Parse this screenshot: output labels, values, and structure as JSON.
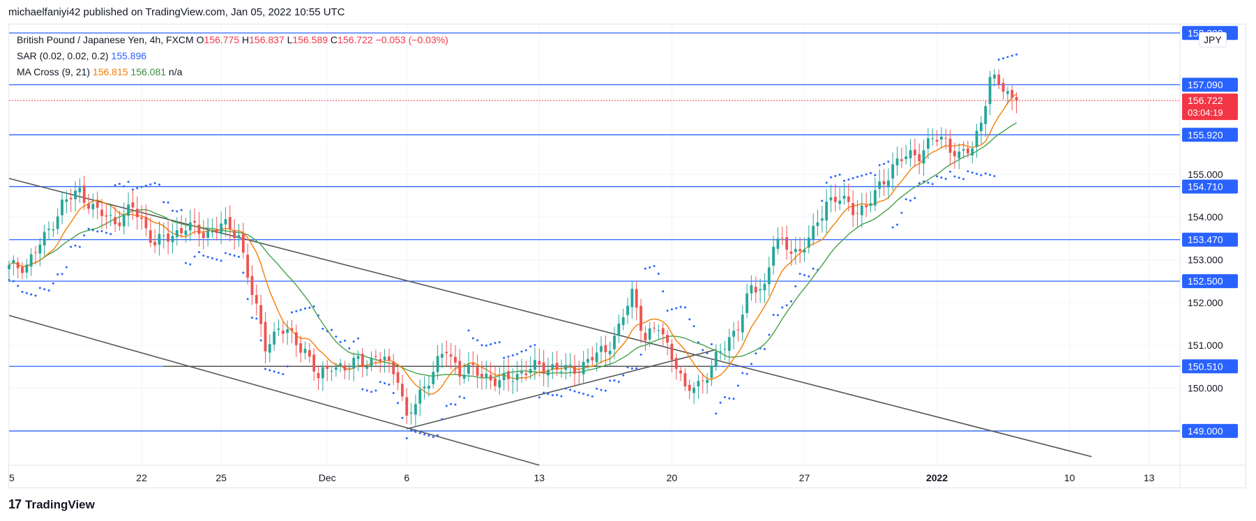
{
  "header": {
    "published": "michaelfaniyi42 published on TradingView.com, Jan 05, 2022 10:55 UTC"
  },
  "legend": {
    "symbol": "British Pound / Japanese Yen, 4h, FXCM",
    "o_label": "O",
    "o": "156.775",
    "h_label": "H",
    "h": "156.837",
    "l_label": "L",
    "l": "156.589",
    "c_label": "C",
    "c": "156.722",
    "change": "−0.053 (−0.03%)",
    "sar_label": "SAR (0.02, 0.02, 0.2)",
    "sar_value": "155.896",
    "ma_label": "MA Cross (9, 21)",
    "ma_fast": "156.815",
    "ma_slow": "156.081",
    "ma_na": "n/a"
  },
  "currency": "JPY",
  "footer": {
    "brand": "TradingView",
    "logo": "17"
  },
  "colors": {
    "up": "#26a69a",
    "down": "#ef5350",
    "level": "#2962ff",
    "sar": "#2962ff",
    "ma_fast": "#f57c00",
    "ma_slow": "#43a047",
    "trend": "#555555",
    "price_label": "#f23645"
  },
  "chart_data": {
    "type": "candlestick",
    "title": "British Pound / Japanese Yen, 4h, FXCM",
    "y_ticks": [
      149.0,
      150.0,
      151.0,
      152.0,
      153.0,
      154.0,
      155.0
    ],
    "y_tick_labels": [
      "149.000",
      "150.000",
      "151.000",
      "152.000",
      "153.000",
      "154.000",
      "155.000"
    ],
    "ylim": [
      148.2,
      158.5
    ],
    "x_ticks": [
      {
        "i": 0,
        "label": "5"
      },
      {
        "i": 30,
        "label": "22"
      },
      {
        "i": 48,
        "label": "25"
      },
      {
        "i": 72,
        "label": "Dec"
      },
      {
        "i": 90,
        "label": "6"
      },
      {
        "i": 120,
        "label": "13"
      },
      {
        "i": 150,
        "label": "20"
      },
      {
        "i": 180,
        "label": "27"
      },
      {
        "i": 210,
        "label": "2022"
      },
      {
        "i": 240,
        "label": "10"
      },
      {
        "i": 258,
        "label": "13"
      }
    ],
    "x_index_range": [
      0,
      265
    ],
    "horizontal_levels": [
      {
        "value": 158.3,
        "label": "158.300"
      },
      {
        "value": 157.09,
        "label": "157.090"
      },
      {
        "value": 155.92,
        "label": "155.920"
      },
      {
        "value": 154.71,
        "label": "154.710"
      },
      {
        "value": 153.47,
        "label": "153.470"
      },
      {
        "value": 152.5,
        "label": "152.500"
      },
      {
        "value": 150.51,
        "label": "150.510"
      },
      {
        "value": 149.0,
        "label": "149.000"
      }
    ],
    "last_price": {
      "value": 156.722,
      "label": "156.722",
      "countdown": "03:04:19"
    },
    "trendlines": [
      {
        "from": [
          0,
          154.9
        ],
        "to": [
          245,
          148.4
        ]
      },
      {
        "from": [
          0,
          151.7
        ],
        "to": [
          120,
          148.2
        ]
      },
      {
        "from": [
          90,
          149.05
        ],
        "to": [
          160,
          150.9
        ]
      },
      {
        "from": [
          35,
          150.51
        ],
        "to": [
          160,
          150.51
        ]
      }
    ],
    "close_anchors": [
      [
        0,
        152.8
      ],
      [
        4,
        152.9
      ],
      [
        8,
        153.5
      ],
      [
        12,
        154.3
      ],
      [
        16,
        154.6
      ],
      [
        20,
        154.1
      ],
      [
        24,
        153.9
      ],
      [
        28,
        154.2
      ],
      [
        30,
        153.9
      ],
      [
        33,
        153.4
      ],
      [
        36,
        153.5
      ],
      [
        40,
        153.8
      ],
      [
        44,
        153.6
      ],
      [
        48,
        153.8
      ],
      [
        52,
        153.6
      ],
      [
        55,
        152.2
      ],
      [
        58,
        151.0
      ],
      [
        61,
        151.4
      ],
      [
        64,
        151.2
      ],
      [
        67,
        150.9
      ],
      [
        70,
        150.2
      ],
      [
        73,
        150.6
      ],
      [
        76,
        150.4
      ],
      [
        79,
        150.7
      ],
      [
        82,
        150.6
      ],
      [
        85,
        150.7
      ],
      [
        88,
        150.3
      ],
      [
        90,
        149.2
      ],
      [
        93,
        149.9
      ],
      [
        96,
        150.4
      ],
      [
        99,
        150.9
      ],
      [
        102,
        150.4
      ],
      [
        105,
        150.4
      ],
      [
        108,
        150.3
      ],
      [
        111,
        150.1
      ],
      [
        114,
        150.3
      ],
      [
        117,
        150.4
      ],
      [
        120,
        150.5
      ],
      [
        123,
        150.5
      ],
      [
        126,
        150.4
      ],
      [
        129,
        150.5
      ],
      [
        132,
        150.7
      ],
      [
        135,
        150.9
      ],
      [
        138,
        151.4
      ],
      [
        141,
        152.2
      ],
      [
        144,
        151.2
      ],
      [
        147,
        151.4
      ],
      [
        149,
        151.0
      ],
      [
        151,
        150.6
      ],
      [
        153,
        149.9
      ],
      [
        156,
        150.1
      ],
      [
        159,
        150.5
      ],
      [
        162,
        151.0
      ],
      [
        165,
        151.5
      ],
      [
        168,
        152.3
      ],
      [
        171,
        152.4
      ],
      [
        173,
        153.4
      ],
      [
        176,
        153.3
      ],
      [
        179,
        153.2
      ],
      [
        182,
        153.6
      ],
      [
        185,
        154.4
      ],
      [
        188,
        154.4
      ],
      [
        191,
        154.2
      ],
      [
        194,
        154.2
      ],
      [
        197,
        154.7
      ],
      [
        200,
        155.2
      ],
      [
        203,
        155.4
      ],
      [
        206,
        155.5
      ],
      [
        209,
        155.8
      ],
      [
        212,
        155.8
      ],
      [
        215,
        155.4
      ],
      [
        218,
        155.6
      ],
      [
        220,
        156.3
      ],
      [
        222,
        157.2
      ],
      [
        224,
        157.1
      ],
      [
        226,
        156.9
      ],
      [
        228,
        156.72
      ]
    ]
  }
}
